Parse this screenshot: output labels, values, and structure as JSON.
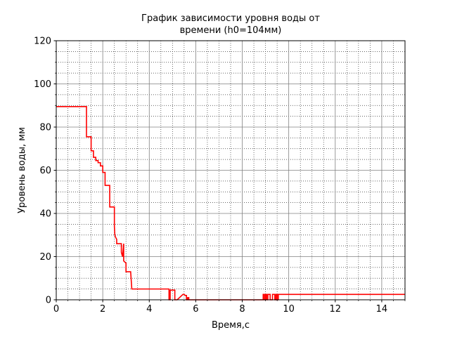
{
  "chart_data": {
    "type": "line",
    "title_line1": "График зависимости уровня воды от",
    "title_line2": "времени (h0=104мм)",
    "xlabel": "Время,с",
    "ylabel": "Уровень воды, мм",
    "xlim": [
      0,
      15
    ],
    "ylim": [
      0,
      120
    ],
    "x_ticks": [
      0,
      2,
      4,
      6,
      8,
      10,
      12,
      14
    ],
    "y_ticks": [
      0,
      20,
      40,
      60,
      80,
      100,
      120
    ],
    "x_tick_labels": [
      "0",
      "2",
      "4",
      "6",
      "8",
      "10",
      "12",
      "14"
    ],
    "y_tick_labels": [
      "0",
      "20",
      "40",
      "60",
      "80",
      "100",
      "120"
    ],
    "grid": true,
    "line_color": "#ff0000",
    "series": [
      {
        "x": [
          0,
          1.3,
          1.3,
          1.5,
          1.5,
          1.6,
          1.6,
          1.7,
          1.7,
          1.8,
          1.8,
          1.9,
          1.9,
          2.0,
          2.0,
          2.1,
          2.1,
          2.3,
          2.3,
          2.35,
          2.35,
          2.5,
          2.5,
          2.52,
          2.55,
          2.6,
          2.6,
          2.8,
          2.8,
          2.85,
          2.9,
          2.9,
          3.0,
          3.0,
          3.2,
          3.2,
          3.25,
          3.25,
          4.85,
          4.85,
          4.9,
          4.9,
          5.1,
          5.1,
          5.2,
          5.2,
          5.45,
          5.5,
          5.55,
          5.6,
          5.6,
          5.65,
          5.65,
          5.7,
          5.7,
          8.9,
          8.9,
          8.95,
          8.95,
          9.0,
          9.0,
          9.05,
          9.05,
          9.1,
          9.1,
          9.2,
          9.2,
          9.3,
          9.3,
          9.4,
          9.4,
          9.45,
          9.45,
          9.5,
          9.5,
          9.55,
          9.55,
          15
        ],
        "y": [
          89.5,
          89.5,
          75.5,
          75.5,
          69,
          69,
          66,
          66,
          64.5,
          64.5,
          63.5,
          63.5,
          62,
          62,
          59,
          59,
          53,
          53,
          43,
          43,
          43,
          43,
          34,
          30,
          29,
          28,
          26,
          26,
          22,
          20,
          26,
          18,
          17,
          13,
          13,
          13,
          5,
          5,
          5,
          0,
          0,
          4.5,
          4.5,
          0,
          0,
          0,
          2.5,
          2.5,
          2,
          2,
          0,
          0,
          1,
          1,
          0,
          0,
          2.5,
          2.5,
          0,
          0,
          2.5,
          2.5,
          0,
          0,
          2.5,
          2.5,
          0,
          0,
          2.5,
          2.5,
          0,
          0,
          2.5,
          2.5,
          0,
          0,
          2.5,
          2.5
        ]
      }
    ]
  }
}
